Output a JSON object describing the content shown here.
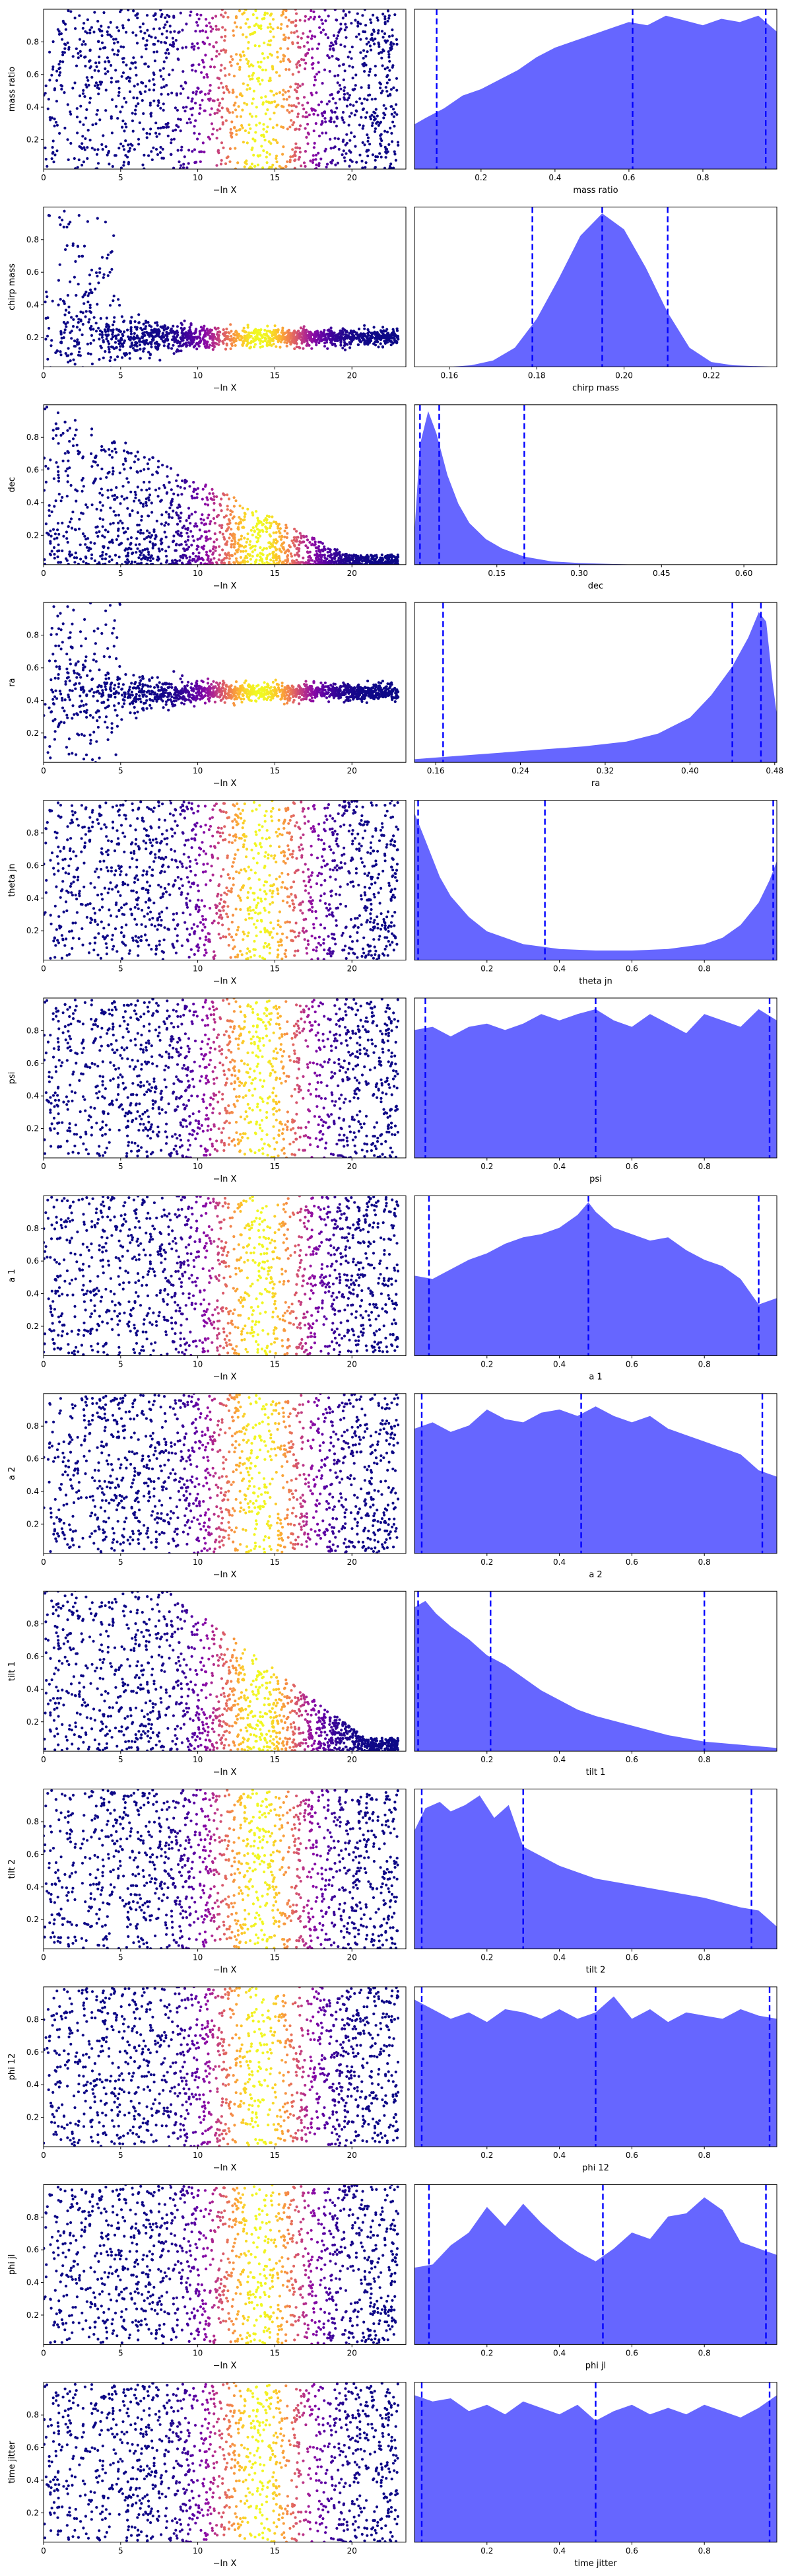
{
  "figure": {
    "x_label_left": "−ln X",
    "colormap": "plasma",
    "kde_fill_color": "#6666ff",
    "quantile_line_color": "#0000ff"
  },
  "chart_data": [
    {
      "type": "scatter",
      "param": "mass ratio",
      "xlim": [
        0,
        23.5
      ],
      "ylim": [
        0.02,
        1.0
      ],
      "left_yticks": [
        0.2,
        0.4,
        0.6,
        0.8
      ],
      "left_xticks": [
        0,
        5,
        10,
        15,
        20
      ],
      "band_center": 14,
      "band_width": 2.2,
      "right_xlim": [
        0.02,
        1.0
      ],
      "right_xticks": [
        0.2,
        0.4,
        0.6,
        0.8
      ],
      "right_xtick_labels": [
        "0.2",
        "0.4",
        "0.6",
        "0.8"
      ],
      "quantiles": [
        0.08,
        0.61,
        0.97
      ],
      "kde": {
        "x": [
          0.02,
          0.05,
          0.1,
          0.15,
          0.2,
          0.25,
          0.3,
          0.35,
          0.4,
          0.45,
          0.5,
          0.55,
          0.6,
          0.65,
          0.7,
          0.75,
          0.8,
          0.85,
          0.9,
          0.95,
          1.0
        ],
        "y": [
          0.28,
          0.32,
          0.38,
          0.46,
          0.5,
          0.56,
          0.62,
          0.7,
          0.76,
          0.8,
          0.84,
          0.88,
          0.92,
          0.9,
          0.96,
          0.93,
          0.9,
          0.94,
          0.92,
          0.96,
          0.86
        ]
      },
      "left_shape": "uniform",
      "scale": "linear"
    },
    {
      "type": "scatter",
      "param": "chirp mass",
      "xlim": [
        0,
        23.5
      ],
      "ylim": [
        0.02,
        1.0
      ],
      "left_yticks": [
        0.2,
        0.4,
        0.6,
        0.8
      ],
      "left_xticks": [
        0,
        5,
        10,
        15,
        20
      ],
      "band_center": 14,
      "band_width": 2.2,
      "right_xlim": [
        0.152,
        0.235
      ],
      "right_xticks": [
        0.16,
        0.18,
        0.2,
        0.22
      ],
      "right_xtick_labels": [
        "0.16",
        "0.18",
        "0.20",
        "0.22"
      ],
      "quantiles": [
        0.179,
        0.195,
        0.21
      ],
      "kde": {
        "x": [
          0.152,
          0.16,
          0.165,
          0.17,
          0.175,
          0.18,
          0.185,
          0.19,
          0.195,
          0.2,
          0.205,
          0.21,
          0.215,
          0.22,
          0.225,
          0.235
        ],
        "y": [
          0.0,
          0.0,
          0.01,
          0.04,
          0.12,
          0.3,
          0.55,
          0.82,
          0.96,
          0.86,
          0.62,
          0.34,
          0.12,
          0.03,
          0.01,
          0.0
        ]
      },
      "left_shape": "converge",
      "converge_to": 0.2,
      "scale": "linear"
    },
    {
      "type": "scatter",
      "param": "dec",
      "xlim": [
        0,
        23.5
      ],
      "ylim": [
        0.02,
        1.0
      ],
      "left_yticks": [
        0.2,
        0.4,
        0.6,
        0.8
      ],
      "left_xticks": [
        0,
        5,
        10,
        15,
        20
      ],
      "band_center": 14,
      "band_width": 2.2,
      "right_xlim": [
        0.0,
        0.66
      ],
      "right_xticks": [
        0.15,
        0.3,
        0.45,
        0.6
      ],
      "right_xtick_labels": [
        "0.15",
        "0.30",
        "0.45",
        "0.60"
      ],
      "quantiles": [
        0.01,
        0.045,
        0.2
      ],
      "kde": {
        "x": [
          0.0,
          0.01,
          0.025,
          0.04,
          0.06,
          0.08,
          0.1,
          0.13,
          0.16,
          0.2,
          0.25,
          0.3,
          0.4,
          0.5,
          0.66
        ],
        "y": [
          0.2,
          0.75,
          0.96,
          0.82,
          0.56,
          0.38,
          0.26,
          0.16,
          0.1,
          0.05,
          0.02,
          0.01,
          0.0,
          0.0,
          0.0
        ]
      },
      "left_shape": "wedge",
      "scale": "linear"
    },
    {
      "type": "scatter",
      "param": "ra",
      "xlim": [
        0,
        23.5
      ],
      "ylim": [
        0.02,
        1.0
      ],
      "left_yticks": [
        0.2,
        0.4,
        0.6,
        0.8
      ],
      "left_xticks": [
        0,
        5,
        10,
        15,
        20
      ],
      "band_center": 14,
      "band_width": 2.2,
      "right_xlim": [
        0.14,
        0.482
      ],
      "right_xticks": [
        0.16,
        0.24,
        0.32,
        0.4,
        0.48
      ],
      "right_xtick_labels": [
        "0.16",
        "0.24",
        "0.32",
        "0.40",
        "0.48"
      ],
      "quantiles": [
        0.167,
        0.44,
        0.467
      ],
      "kde": {
        "x": [
          0.14,
          0.18,
          0.22,
          0.26,
          0.3,
          0.34,
          0.37,
          0.4,
          0.42,
          0.44,
          0.455,
          0.465,
          0.472,
          0.478,
          0.482
        ],
        "y": [
          0.02,
          0.04,
          0.06,
          0.08,
          0.1,
          0.13,
          0.18,
          0.28,
          0.42,
          0.6,
          0.78,
          0.94,
          0.88,
          0.5,
          0.3
        ]
      },
      "left_shape": "converge",
      "converge_to": 0.45,
      "scale": "linear"
    },
    {
      "type": "scatter",
      "param": "theta jn",
      "xlim": [
        0,
        23.5
      ],
      "ylim": [
        0.02,
        1.0
      ],
      "left_yticks": [
        0.2,
        0.4,
        0.6,
        0.8
      ],
      "left_xticks": [
        0,
        5,
        10,
        15,
        20
      ],
      "band_center": 14,
      "band_width": 2.2,
      "right_xlim": [
        0.0,
        1.0
      ],
      "right_xticks": [
        0.2,
        0.4,
        0.6,
        0.8
      ],
      "right_xtick_labels": [
        "0.2",
        "0.4",
        "0.6",
        "0.8"
      ],
      "quantiles": [
        0.01,
        0.36,
        0.99
      ],
      "kde": {
        "x": [
          0.0,
          0.03,
          0.07,
          0.1,
          0.15,
          0.2,
          0.3,
          0.4,
          0.5,
          0.6,
          0.7,
          0.8,
          0.85,
          0.9,
          0.95,
          0.98,
          1.0
        ],
        "y": [
          0.92,
          0.75,
          0.52,
          0.4,
          0.27,
          0.18,
          0.1,
          0.07,
          0.06,
          0.06,
          0.07,
          0.1,
          0.14,
          0.22,
          0.36,
          0.5,
          0.62
        ]
      },
      "left_shape": "uniform",
      "scale": "linear"
    },
    {
      "type": "scatter",
      "param": "psi",
      "xlim": [
        0,
        23.5
      ],
      "ylim": [
        0.02,
        1.0
      ],
      "left_yticks": [
        0.2,
        0.4,
        0.6,
        0.8
      ],
      "left_xticks": [
        0,
        5,
        10,
        15,
        20
      ],
      "band_center": 14,
      "band_width": 2.2,
      "right_xlim": [
        0.0,
        1.0
      ],
      "right_xticks": [
        0.2,
        0.4,
        0.6,
        0.8
      ],
      "right_xtick_labels": [
        "0.2",
        "0.4",
        "0.6",
        "0.8"
      ],
      "quantiles": [
        0.03,
        0.5,
        0.98
      ],
      "kde": {
        "x": [
          0.0,
          0.05,
          0.1,
          0.15,
          0.2,
          0.25,
          0.3,
          0.35,
          0.4,
          0.45,
          0.5,
          0.55,
          0.6,
          0.65,
          0.7,
          0.75,
          0.8,
          0.85,
          0.9,
          0.95,
          1.0
        ],
        "y": [
          0.8,
          0.82,
          0.76,
          0.82,
          0.84,
          0.8,
          0.84,
          0.9,
          0.86,
          0.9,
          0.93,
          0.86,
          0.82,
          0.9,
          0.84,
          0.78,
          0.9,
          0.86,
          0.82,
          0.93,
          0.86
        ]
      },
      "left_shape": "uniform",
      "scale": "linear"
    },
    {
      "type": "scatter",
      "param": "a 1",
      "xlim": [
        0,
        23.5
      ],
      "ylim": [
        0.02,
        1.0
      ],
      "left_yticks": [
        0.2,
        0.4,
        0.6,
        0.8
      ],
      "left_xticks": [
        0,
        5,
        10,
        15,
        20
      ],
      "band_center": 14,
      "band_width": 2.2,
      "right_xlim": [
        0.0,
        1.0
      ],
      "right_xticks": [
        0.2,
        0.4,
        0.6,
        0.8
      ],
      "right_xtick_labels": [
        "0.2",
        "0.4",
        "0.6",
        "0.8"
      ],
      "quantiles": [
        0.04,
        0.48,
        0.95
      ],
      "kde": {
        "x": [
          0.0,
          0.05,
          0.1,
          0.15,
          0.2,
          0.25,
          0.3,
          0.35,
          0.4,
          0.45,
          0.48,
          0.5,
          0.55,
          0.6,
          0.65,
          0.7,
          0.75,
          0.8,
          0.85,
          0.9,
          0.95,
          1.0
        ],
        "y": [
          0.5,
          0.48,
          0.54,
          0.6,
          0.64,
          0.7,
          0.74,
          0.76,
          0.8,
          0.88,
          0.96,
          0.9,
          0.8,
          0.76,
          0.72,
          0.74,
          0.66,
          0.6,
          0.56,
          0.48,
          0.32,
          0.36
        ]
      },
      "left_shape": "uniform",
      "scale": "linear"
    },
    {
      "type": "scatter",
      "param": "a 2",
      "xlim": [
        0,
        23.5
      ],
      "ylim": [
        0.02,
        1.0
      ],
      "left_yticks": [
        0.2,
        0.4,
        0.6,
        0.8
      ],
      "left_xticks": [
        0,
        5,
        10,
        15,
        20
      ],
      "band_center": 14,
      "band_width": 2.2,
      "right_xlim": [
        0.0,
        1.0
      ],
      "right_xticks": [
        0.2,
        0.4,
        0.6,
        0.8
      ],
      "right_xtick_labels": [
        "0.2",
        "0.4",
        "0.6",
        "0.8"
      ],
      "quantiles": [
        0.02,
        0.46,
        0.96
      ],
      "kde": {
        "x": [
          0.0,
          0.05,
          0.1,
          0.15,
          0.2,
          0.25,
          0.3,
          0.35,
          0.4,
          0.45,
          0.5,
          0.55,
          0.6,
          0.65,
          0.7,
          0.75,
          0.8,
          0.85,
          0.9,
          0.95,
          1.0
        ],
        "y": [
          0.78,
          0.82,
          0.76,
          0.8,
          0.9,
          0.84,
          0.82,
          0.88,
          0.9,
          0.86,
          0.92,
          0.86,
          0.82,
          0.86,
          0.78,
          0.74,
          0.7,
          0.66,
          0.62,
          0.52,
          0.48
        ]
      },
      "left_shape": "uniform",
      "scale": "linear"
    },
    {
      "type": "scatter",
      "param": "tilt 1",
      "xlim": [
        0,
        23.5
      ],
      "ylim": [
        0.02,
        1.0
      ],
      "left_yticks": [
        0.2,
        0.4,
        0.6,
        0.8
      ],
      "left_xticks": [
        0,
        5,
        10,
        15,
        20
      ],
      "band_center": 14,
      "band_width": 2.2,
      "right_xlim": [
        0.0,
        1.0
      ],
      "right_xticks": [
        0.2,
        0.4,
        0.6,
        0.8
      ],
      "right_xtick_labels": [
        "0.2",
        "0.4",
        "0.6",
        "0.8"
      ],
      "quantiles": [
        0.01,
        0.21,
        0.8
      ],
      "kde": {
        "x": [
          0.0,
          0.03,
          0.06,
          0.1,
          0.15,
          0.2,
          0.25,
          0.3,
          0.35,
          0.4,
          0.45,
          0.5,
          0.6,
          0.7,
          0.8,
          0.9,
          1.0
        ],
        "y": [
          0.9,
          0.94,
          0.86,
          0.78,
          0.7,
          0.6,
          0.54,
          0.46,
          0.38,
          0.32,
          0.26,
          0.22,
          0.16,
          0.1,
          0.06,
          0.04,
          0.02
        ]
      },
      "left_shape": "wedge_soft",
      "scale": "linear"
    },
    {
      "type": "scatter",
      "param": "tilt 2",
      "xlim": [
        0,
        23.5
      ],
      "ylim": [
        0.02,
        1.0
      ],
      "left_yticks": [
        0.2,
        0.4,
        0.6,
        0.8
      ],
      "left_xticks": [
        0,
        5,
        10,
        15,
        20
      ],
      "band_center": 14,
      "band_width": 2.2,
      "right_xlim": [
        0.0,
        1.0
      ],
      "right_xticks": [
        0.2,
        0.4,
        0.6,
        0.8
      ],
      "right_xtick_labels": [
        "0.2",
        "0.4",
        "0.6",
        "0.8"
      ],
      "quantiles": [
        0.02,
        0.3,
        0.93
      ],
      "kde": {
        "x": [
          0.0,
          0.03,
          0.07,
          0.1,
          0.14,
          0.18,
          0.22,
          0.26,
          0.3,
          0.35,
          0.4,
          0.5,
          0.6,
          0.7,
          0.8,
          0.9,
          0.95,
          1.0
        ],
        "y": [
          0.74,
          0.88,
          0.92,
          0.86,
          0.9,
          0.96,
          0.82,
          0.9,
          0.64,
          0.58,
          0.52,
          0.44,
          0.4,
          0.36,
          0.32,
          0.26,
          0.24,
          0.14
        ]
      },
      "left_shape": "uniform",
      "scale": "linear"
    },
    {
      "type": "scatter",
      "param": "phi 12",
      "xlim": [
        0,
        23.5
      ],
      "ylim": [
        0.02,
        1.0
      ],
      "left_yticks": [
        0.2,
        0.4,
        0.6,
        0.8
      ],
      "left_xticks": [
        0,
        5,
        10,
        15,
        20
      ],
      "band_center": 14,
      "band_width": 2.2,
      "right_xlim": [
        0.0,
        1.0
      ],
      "right_xticks": [
        0.2,
        0.4,
        0.6,
        0.8
      ],
      "right_xtick_labels": [
        "0.2",
        "0.4",
        "0.6",
        "0.8"
      ],
      "quantiles": [
        0.02,
        0.5,
        0.98
      ],
      "kde": {
        "x": [
          0.0,
          0.05,
          0.1,
          0.15,
          0.2,
          0.25,
          0.3,
          0.35,
          0.4,
          0.45,
          0.5,
          0.55,
          0.6,
          0.65,
          0.7,
          0.75,
          0.8,
          0.85,
          0.9,
          0.95,
          1.0
        ],
        "y": [
          0.92,
          0.86,
          0.8,
          0.84,
          0.78,
          0.86,
          0.84,
          0.8,
          0.86,
          0.8,
          0.84,
          0.94,
          0.8,
          0.86,
          0.78,
          0.84,
          0.82,
          0.8,
          0.86,
          0.82,
          0.8
        ]
      },
      "left_shape": "uniform",
      "scale": "linear"
    },
    {
      "type": "scatter",
      "param": "phi jl",
      "xlim": [
        0,
        23.5
      ],
      "ylim": [
        0.02,
        1.0
      ],
      "left_yticks": [
        0.2,
        0.4,
        0.6,
        0.8
      ],
      "left_xticks": [
        0,
        5,
        10,
        15,
        20
      ],
      "band_center": 14,
      "band_width": 2.2,
      "right_xlim": [
        0.0,
        1.0
      ],
      "right_xticks": [
        0.2,
        0.4,
        0.6,
        0.8
      ],
      "right_xtick_labels": [
        "0.2",
        "0.4",
        "0.6",
        "0.8"
      ],
      "quantiles": [
        0.04,
        0.52,
        0.97
      ],
      "kde": {
        "x": [
          0.0,
          0.05,
          0.1,
          0.15,
          0.2,
          0.25,
          0.3,
          0.35,
          0.4,
          0.45,
          0.5,
          0.55,
          0.6,
          0.65,
          0.7,
          0.75,
          0.8,
          0.85,
          0.9,
          0.95,
          1.0
        ],
        "y": [
          0.48,
          0.5,
          0.62,
          0.7,
          0.86,
          0.74,
          0.88,
          0.76,
          0.66,
          0.58,
          0.52,
          0.6,
          0.7,
          0.66,
          0.8,
          0.82,
          0.92,
          0.84,
          0.64,
          0.6,
          0.56
        ]
      },
      "left_shape": "uniform",
      "scale": "linear"
    },
    {
      "type": "scatter",
      "param": "time jitter",
      "xlim": [
        0,
        23.5
      ],
      "ylim": [
        0.02,
        1.0
      ],
      "left_yticks": [
        0.2,
        0.4,
        0.6,
        0.8
      ],
      "left_xticks": [
        0,
        5,
        10,
        15,
        20
      ],
      "band_center": 14,
      "band_width": 2.2,
      "right_xlim": [
        0.0,
        1.0
      ],
      "right_xticks": [
        0.2,
        0.4,
        0.6,
        0.8
      ],
      "right_xtick_labels": [
        "0.2",
        "0.4",
        "0.6",
        "0.8"
      ],
      "quantiles": [
        0.02,
        0.5,
        0.98
      ],
      "kde": {
        "x": [
          0.0,
          0.05,
          0.1,
          0.15,
          0.2,
          0.25,
          0.3,
          0.35,
          0.4,
          0.45,
          0.5,
          0.55,
          0.6,
          0.65,
          0.7,
          0.75,
          0.8,
          0.85,
          0.9,
          0.95,
          1.0
        ],
        "y": [
          0.92,
          0.88,
          0.9,
          0.82,
          0.86,
          0.8,
          0.88,
          0.84,
          0.8,
          0.86,
          0.76,
          0.82,
          0.86,
          0.8,
          0.84,
          0.8,
          0.86,
          0.82,
          0.78,
          0.84,
          0.92
        ]
      },
      "left_shape": "uniform",
      "scale": "linear"
    }
  ]
}
